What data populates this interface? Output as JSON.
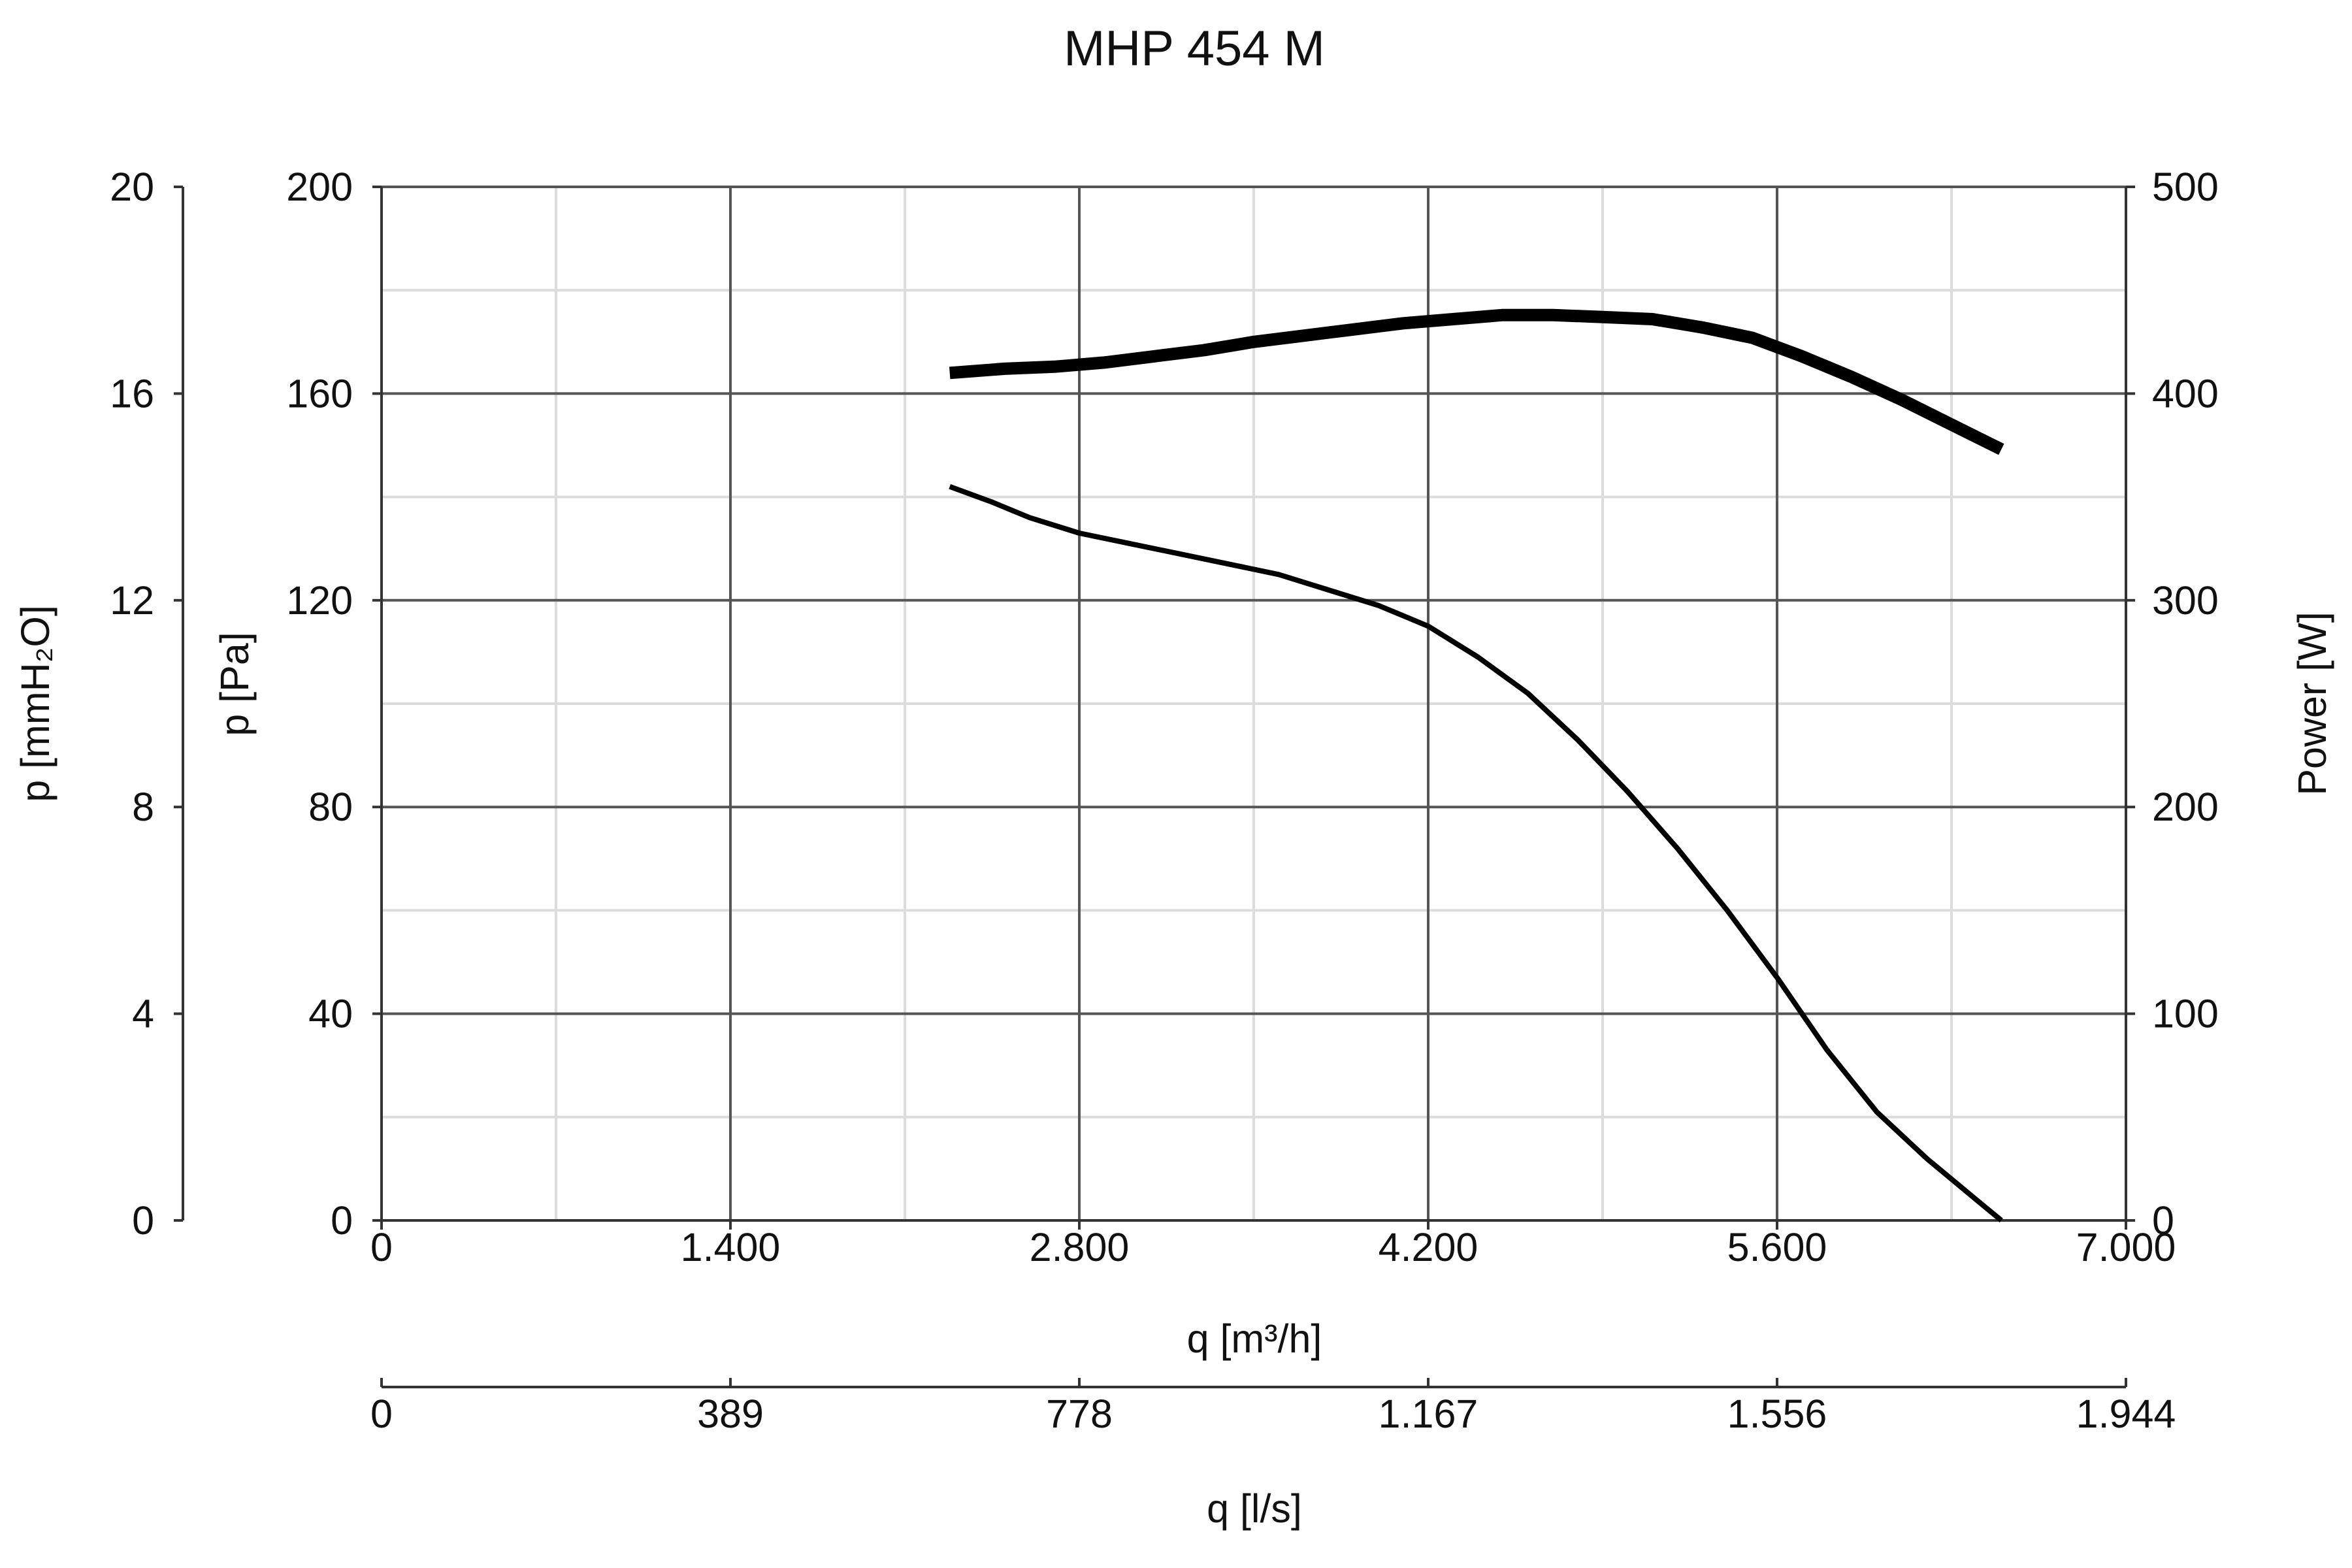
{
  "chart_data": {
    "type": "line",
    "title": "MHP 454 M",
    "x_axis": {
      "label": "q [m³/h]",
      "range": [
        0,
        7000
      ],
      "ticks": [
        0,
        1400,
        2800,
        4200,
        5600,
        7000
      ],
      "tick_labels": [
        "0",
        "1.400",
        "2.800",
        "4.200",
        "5.600",
        "7.000"
      ]
    },
    "x_axis_secondary": {
      "label": "q [l/s]",
      "range": [
        0,
        1944
      ],
      "tick_labels": [
        "0",
        "389",
        "778",
        "1.167",
        "1.556",
        "1.944"
      ]
    },
    "y_axis_left": {
      "label": "p [Pa]",
      "range": [
        0,
        200
      ],
      "ticks": [
        0,
        40,
        80,
        120,
        160,
        200
      ],
      "tick_labels": [
        "0",
        "40",
        "80",
        "120",
        "160",
        "200"
      ]
    },
    "y_axis_left_secondary": {
      "label": "p [mmH₂O]",
      "range": [
        0,
        20
      ],
      "tick_labels": [
        "0",
        "4",
        "8",
        "12",
        "16",
        "20"
      ]
    },
    "y_axis_right": {
      "label": "Power [W]",
      "range": [
        0,
        500
      ],
      "ticks": [
        0,
        100,
        200,
        300,
        400,
        500
      ],
      "tick_labels": [
        "0",
        "100",
        "200",
        "300",
        "400",
        "500"
      ]
    },
    "grid": true,
    "series": [
      {
        "axis": "right",
        "style": "thick",
        "x": [
          2280,
          2500,
          2700,
          2900,
          3100,
          3300,
          3500,
          3700,
          3900,
          4100,
          4300,
          4500,
          4700,
          4900,
          5100,
          5300,
          5500,
          5700,
          5900,
          6100,
          6300,
          6500
        ],
        "y": [
          410,
          412,
          413,
          415,
          418,
          421,
          425,
          428,
          431,
          434,
          436,
          438,
          438,
          437,
          436,
          432,
          427,
          418,
          408,
          397,
          385,
          373
        ]
      },
      {
        "axis": "left",
        "style": "thin",
        "x": [
          2280,
          2450,
          2600,
          2800,
          3000,
          3200,
          3400,
          3600,
          3800,
          4000,
          4200,
          4400,
          4600,
          4800,
          5000,
          5200,
          5400,
          5600,
          5800,
          6000,
          6200,
          6400,
          6500
        ],
        "y": [
          142,
          139,
          136,
          133,
          131,
          129,
          127,
          125,
          122,
          119,
          115,
          109,
          102,
          93,
          83,
          72,
          60,
          47,
          33,
          21,
          12,
          4,
          0
        ]
      }
    ]
  }
}
